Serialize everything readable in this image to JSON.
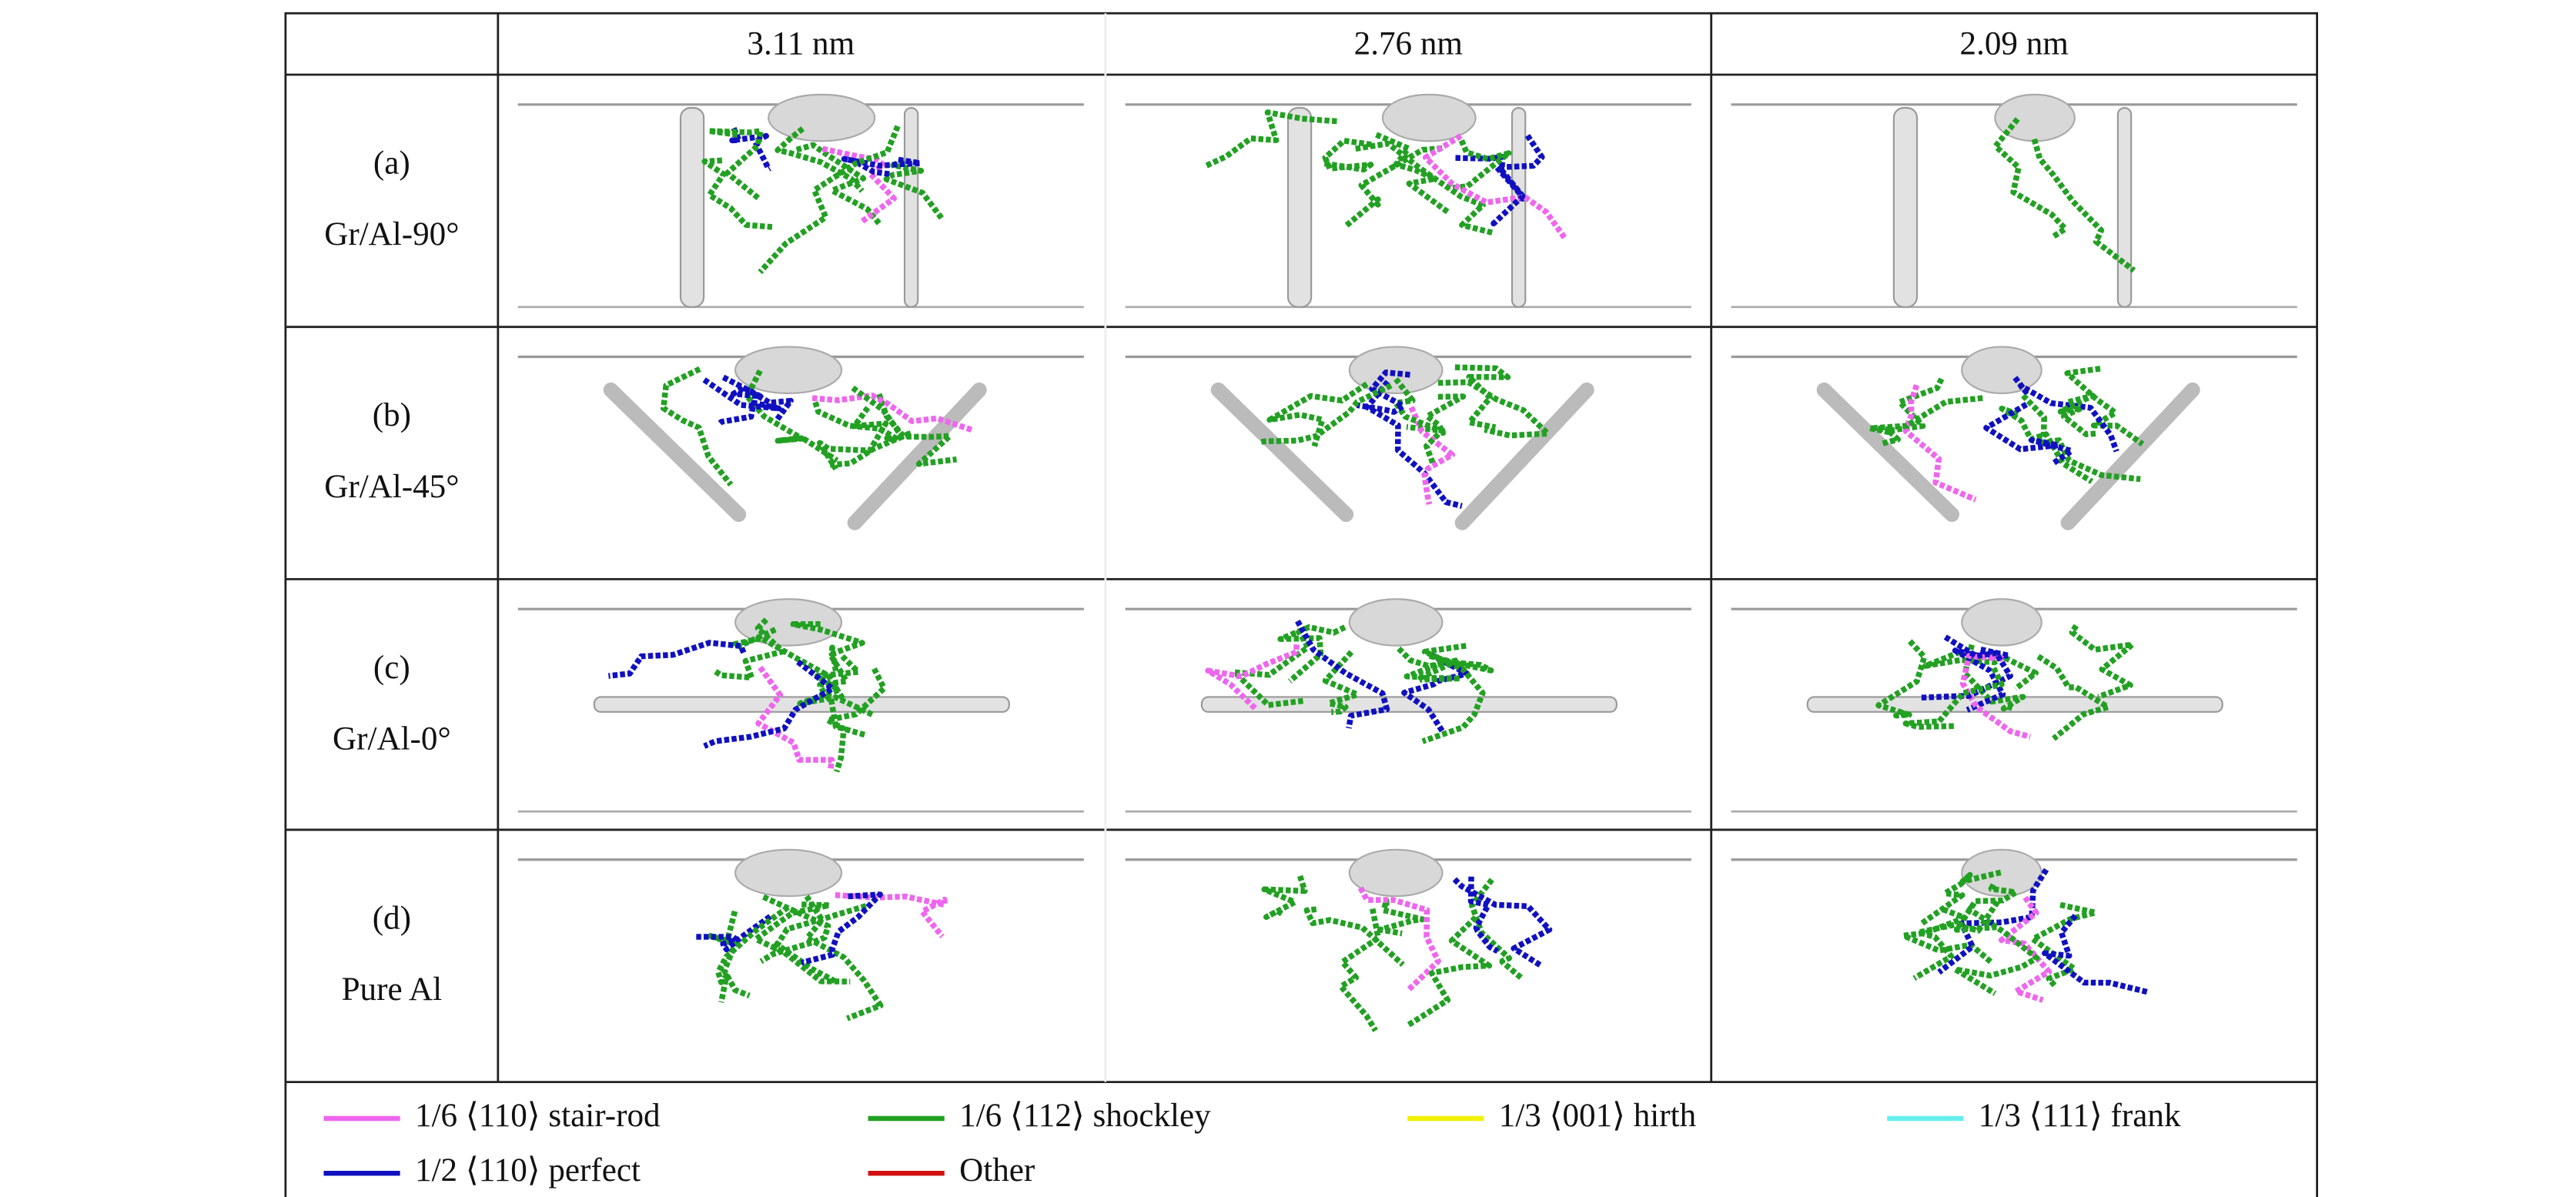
{
  "header": {
    "columns": [
      "3.11 nm",
      "2.76 nm",
      "2.09 nm"
    ]
  },
  "rows": [
    {
      "label": "(a)",
      "name": "Gr/Al-90°"
    },
    {
      "label": "(b)",
      "name": "Gr/Al-45°"
    },
    {
      "label": "(c)",
      "name": "Gr/Al-0°"
    },
    {
      "label": "(d)",
      "name": "Pure Al"
    }
  ],
  "legend": [
    {
      "name": "1/6 ⟨110⟩ stair-rod",
      "color": "#ee66ee"
    },
    {
      "name": "1/6 ⟨112⟩ shockley",
      "color": "#22a022"
    },
    {
      "name": "1/3 ⟨001⟩ hirth",
      "color": "#f0f000"
    },
    {
      "name": "1/3 ⟨111⟩ frank",
      "color": "#66eeee"
    },
    {
      "name": "1/2 ⟨110⟩ perfect",
      "color": "#1010c0"
    },
    {
      "name": "Other",
      "color": "#d01010"
    }
  ]
}
